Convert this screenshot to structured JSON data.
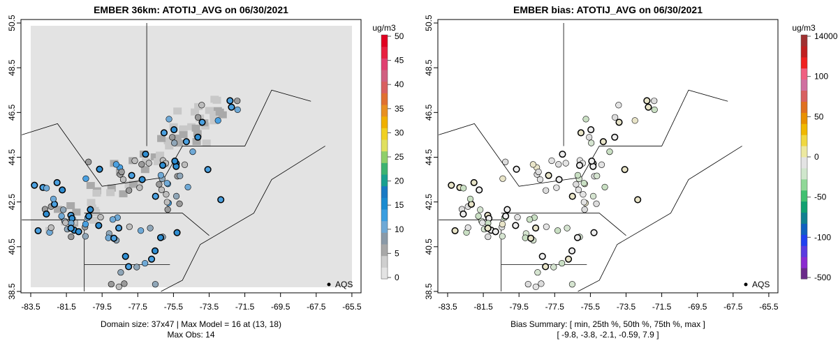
{
  "chart_data": [
    {
      "type": "heatmap",
      "title": "EMBER 36km: ATOTIJ_AVG on 06/30/2021",
      "x_ticks": [
        "-83.5",
        "-81.5",
        "-79.5",
        "-77.5",
        "-75.5",
        "-73.5",
        "-71.5",
        "-69.5",
        "-67.5",
        "-65.5"
      ],
      "y_ticks": [
        "38.5",
        "40.5",
        "42.5",
        "44.5",
        "46.5",
        "48.5",
        "50.5"
      ],
      "xlim": [
        -84,
        -65
      ],
      "ylim": [
        38.4,
        50.6
      ],
      "colorbar": {
        "unit": "ug/m3",
        "ticks": [
          "0",
          "5",
          "10",
          "15",
          "20",
          "25",
          "30",
          "35",
          "40",
          "45",
          "50"
        ],
        "range": [
          0,
          50
        ]
      },
      "legend": {
        "label": "AQS",
        "placement": "bottom-right"
      },
      "footer": [
        "Domain size: 37x47 | Max Model = 16 at (13, 18)",
        "Max Obs: 14"
      ]
    },
    {
      "type": "scatter",
      "title": "EMBER bias: ATOTIJ_AVG on 06/30/2021",
      "x_ticks": [
        "-83.5",
        "-81.5",
        "-79.5",
        "-77.5",
        "-75.5",
        "-73.5",
        "-71.5",
        "-69.5",
        "-67.5",
        "-65.5"
      ],
      "y_ticks": [
        "38.5",
        "40.5",
        "42.5",
        "44.5",
        "46.5",
        "48.5",
        "50.5"
      ],
      "xlim": [
        -84,
        -65
      ],
      "ylim": [
        38.4,
        50.6
      ],
      "colorbar": {
        "unit": "ug/m3",
        "ticks": [
          "14000",
          "100",
          "50",
          "0",
          "-50",
          "-100",
          "-500"
        ]
      },
      "legend": {
        "label": "AQS",
        "placement": "bottom-right"
      },
      "footer": [
        "Bias Summary: [ min, 25th %, 50th %, 75th %, max ]",
        "[ -9.8,   -3.8,   -2.1,   -0.59,   7.9 ]"
      ],
      "bias_summary": {
        "min": -9.8,
        "p25": -3.8,
        "p50": -2.1,
        "p75": -0.59,
        "max": 7.9
      }
    }
  ]
}
